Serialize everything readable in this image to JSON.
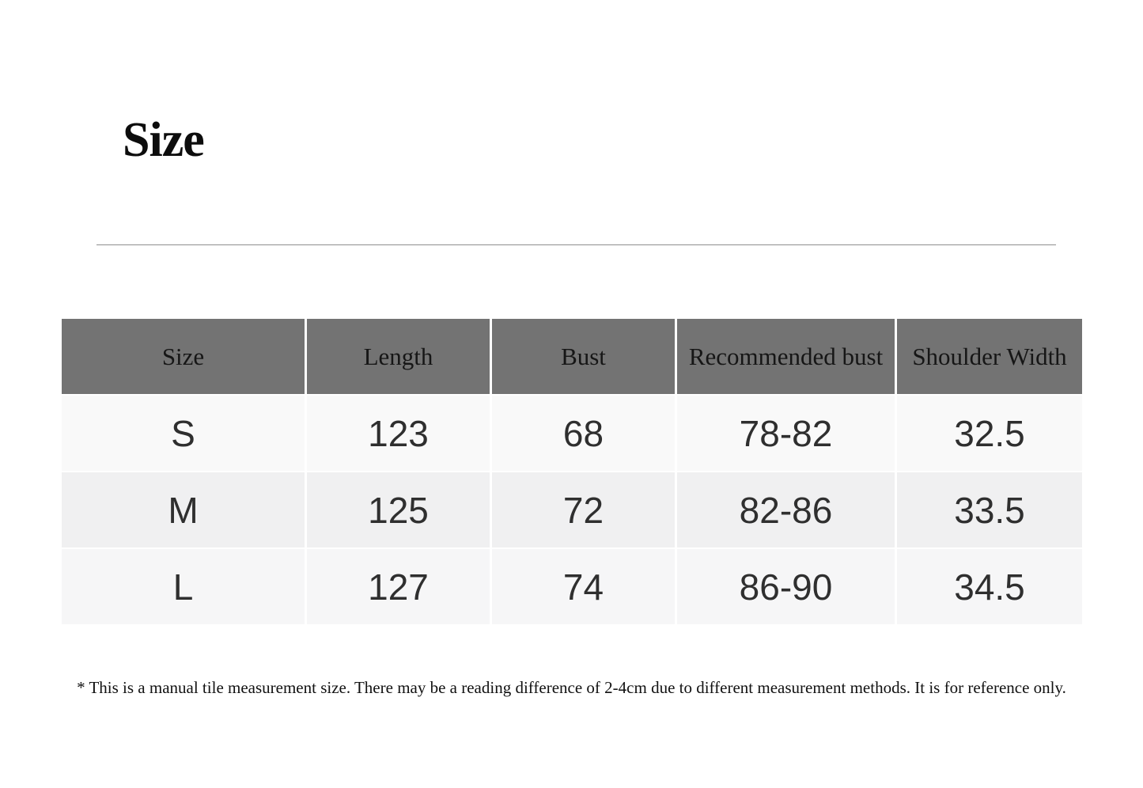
{
  "page": {
    "title": "Size",
    "footnote": "* This is a manual tile measurement size. There may be a reading difference of 2-4cm due to different measurement methods. It is for reference only."
  },
  "table": {
    "columns": [
      "Size",
      "Length",
      "Bust",
      "Recommended bust",
      "Shoulder Width"
    ],
    "rows": [
      [
        "S",
        "123",
        "68",
        "78-82",
        "32.5"
      ],
      [
        "M",
        "125",
        "72",
        "82-86",
        "33.5"
      ],
      [
        "L",
        "127",
        "74",
        "86-90",
        "34.5"
      ]
    ]
  },
  "colors": {
    "header_bg": "#737373",
    "header_text": "#161616",
    "row_s_bg": "#f9f9f9",
    "row_m_bg": "#f0f0f1",
    "row_l_bg": "#f6f6f7",
    "body_text": "#2f2f2f",
    "divider_line": "#8f8f8f"
  }
}
